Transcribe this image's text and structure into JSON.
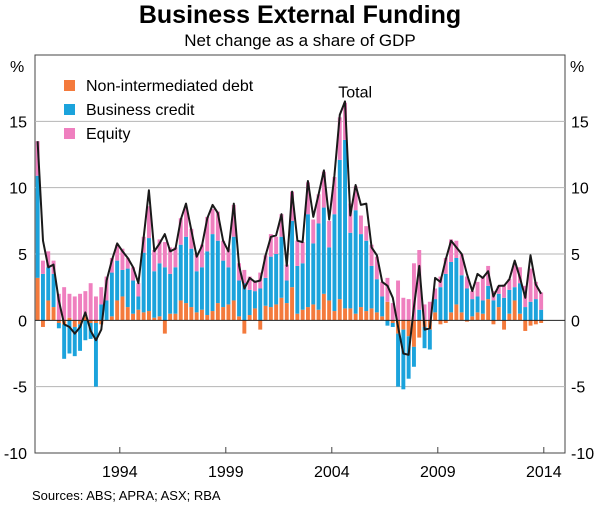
{
  "title": "Business External Funding",
  "subtitle": "Net change as a share of GDP",
  "source": "Sources:   ABS; APRA; ASX; RBA",
  "chart_data": {
    "type": "bar",
    "stacked": true,
    "x_start": 1990.0,
    "x_step": 0.25,
    "xlim": [
      1990.0,
      2015.0
    ],
    "ylim": [
      -10,
      20
    ],
    "yticks": [
      -10,
      -5,
      0,
      5,
      10,
      15
    ],
    "y_unit_label": "%",
    "xticks": [
      1994,
      1999,
      2004,
      2009,
      2014
    ],
    "x_tick_labels": [
      "1994",
      "1999",
      "2004",
      "2009",
      "2014"
    ],
    "grid": true,
    "legend_position": "top-left",
    "colors": {
      "non_intermediated_debt": "#f47a3c",
      "business_credit": "#1ba3dc",
      "equity": "#ef7fbf",
      "total": "#1a1a1a"
    },
    "series": [
      {
        "name": "Non-intermediated debt",
        "key": "non_intermediated_debt",
        "values": [
          3.2,
          -0.5,
          1.5,
          1.0,
          -0.2,
          -0.3,
          0.2,
          -0.5,
          -0.3,
          0.4,
          -0.2,
          -0.2,
          -0.3,
          0.0,
          0.3,
          1.5,
          1.8,
          1.0,
          0.5,
          0.8,
          0.6,
          0.7,
          0.2,
          0.3,
          -1.0,
          0.5,
          0.5,
          1.5,
          1.3,
          1.0,
          0.6,
          0.8,
          0.4,
          0.7,
          1.3,
          1.0,
          1.2,
          1.5,
          0.3,
          -1.0,
          0.4,
          0.9,
          -0.7,
          1.1,
          1.0,
          1.2,
          1.7,
          1.3,
          2.5,
          0.5,
          0.8,
          1.0,
          1.2,
          0.8,
          2.0,
          1.5,
          0.7,
          1.6,
          0.9,
          0.9,
          0.5,
          1.0,
          0.7,
          0.9,
          0.6,
          0.3,
          1.4,
          -0.2,
          -1.0,
          -0.7,
          -1.2,
          -2.0,
          -1.3,
          -0.5,
          -0.7,
          0.6,
          -0.3,
          -0.2,
          0.6,
          1.2,
          0.6,
          -0.1,
          0.3,
          0.6,
          0.5,
          1.6,
          -0.3,
          1.0,
          -0.7,
          0.5,
          1.5,
          0.5,
          -0.8,
          -0.4,
          -0.3,
          -0.2
        ]
      },
      {
        "name": "Business credit",
        "key": "business_credit",
        "values": [
          7.7,
          3.5,
          2.5,
          2.5,
          -0.4,
          -2.6,
          -2.5,
          -2.2,
          -2.0,
          -1.5,
          -1.2,
          -4.8,
          1.2,
          1.5,
          3.3,
          3.0,
          2.0,
          2.9,
          2.5,
          1.0,
          4.5,
          5.5,
          3.5,
          4.0,
          4.0,
          3.0,
          3.5,
          4.2,
          5.0,
          4.4,
          3.1,
          3.2,
          4.8,
          5.8,
          4.7,
          3.5,
          2.8,
          4.8,
          2.7,
          2.8,
          1.9,
          1.3,
          2.4,
          2.1,
          3.8,
          3.8,
          4.6,
          1.7,
          5.0,
          3.6,
          3.5,
          7.0,
          4.6,
          6.5,
          6.5,
          4.0,
          7.3,
          10.5,
          12.7,
          5.7,
          7.8,
          5.5,
          5.3,
          3.2,
          2.5,
          1.5,
          -0.4,
          -0.3,
          -4.0,
          -4.5,
          -3.2,
          -1.5,
          0.8,
          -1.6,
          -1.5,
          1.0,
          2.5,
          3.5,
          3.8,
          3.5,
          2.8,
          2.4,
          1.3,
          1.2,
          1.0,
          1.0,
          1.5,
          1.0,
          1.7,
          1.8,
          1.0,
          2.3,
          1.0,
          1.4,
          1.6,
          0.8
        ]
      },
      {
        "name": "Equity",
        "key": "equity",
        "values": [
          2.6,
          1.0,
          1.2,
          1.0,
          2.0,
          2.5,
          1.8,
          1.8,
          2.0,
          1.8,
          2.8,
          1.8,
          1.3,
          1.8,
          1.1,
          1.2,
          1.6,
          0.8,
          1.0,
          1.0,
          1.2,
          2.4,
          1.6,
          1.8,
          1.9,
          2.0,
          1.5,
          2.0,
          2.2,
          1.5,
          1.3,
          1.7,
          2.6,
          1.9,
          2.2,
          1.5,
          1.4,
          2.4,
          1.3,
          1.0,
          1.0,
          0.8,
          1.2,
          1.7,
          1.7,
          1.3,
          1.7,
          1.2,
          2.2,
          1.9,
          1.6,
          2.4,
          1.8,
          2.2,
          2.7,
          2.0,
          2.8,
          3.2,
          2.8,
          2.2,
          1.8,
          1.4,
          1.1,
          1.6,
          1.7,
          1.1,
          1.8,
          1.3,
          3.0,
          1.7,
          1.6,
          4.3,
          4.5,
          1.2,
          1.4,
          0.8,
          0.8,
          1.2,
          1.7,
          1.3,
          1.6,
          0.9,
          0.6,
          1.1,
          1.8,
          1.5,
          0.7,
          0.6,
          1.0,
          0.8,
          1.8,
          1.2,
          1.6,
          2.5,
          1.3,
          1.3
        ]
      },
      {
        "name": "Total",
        "key": "total",
        "type": "line",
        "values": [
          13.5,
          6.0,
          4.0,
          4.2,
          1.5,
          -0.3,
          -0.5,
          -1.0,
          -0.5,
          0.6,
          -0.8,
          -1.5,
          -0.7,
          3.0,
          4.5,
          5.8,
          5.2,
          4.7,
          4.0,
          2.8,
          6.2,
          9.8,
          5.2,
          5.8,
          6.5,
          5.2,
          5.4,
          7.6,
          8.8,
          6.8,
          4.8,
          5.6,
          7.7,
          8.7,
          8.1,
          6.0,
          5.2,
          8.8,
          4.1,
          2.4,
          3.2,
          2.9,
          3.0,
          4.9,
          6.3,
          6.4,
          8.0,
          4.1,
          9.7,
          6.0,
          5.9,
          10.5,
          7.8,
          9.5,
          11.3,
          7.6,
          10.9,
          15.5,
          16.5,
          7.9,
          10.2,
          8.7,
          8.8,
          5.5,
          4.9,
          2.9,
          2.6,
          1.7,
          -0.5,
          -2.5,
          -2.6,
          1.0,
          4.1,
          -0.7,
          -0.6,
          3.2,
          2.9,
          4.6,
          6.0,
          5.5,
          5.0,
          3.5,
          2.2,
          3.5,
          3.2,
          3.7,
          1.8,
          2.6,
          2.6,
          3.1,
          4.5,
          3.2,
          1.7,
          4.9,
          2.7,
          2.0
        ]
      }
    ],
    "annotations": [
      {
        "text": "Total",
        "x": 2005.9,
        "y": 16.8
      }
    ]
  }
}
